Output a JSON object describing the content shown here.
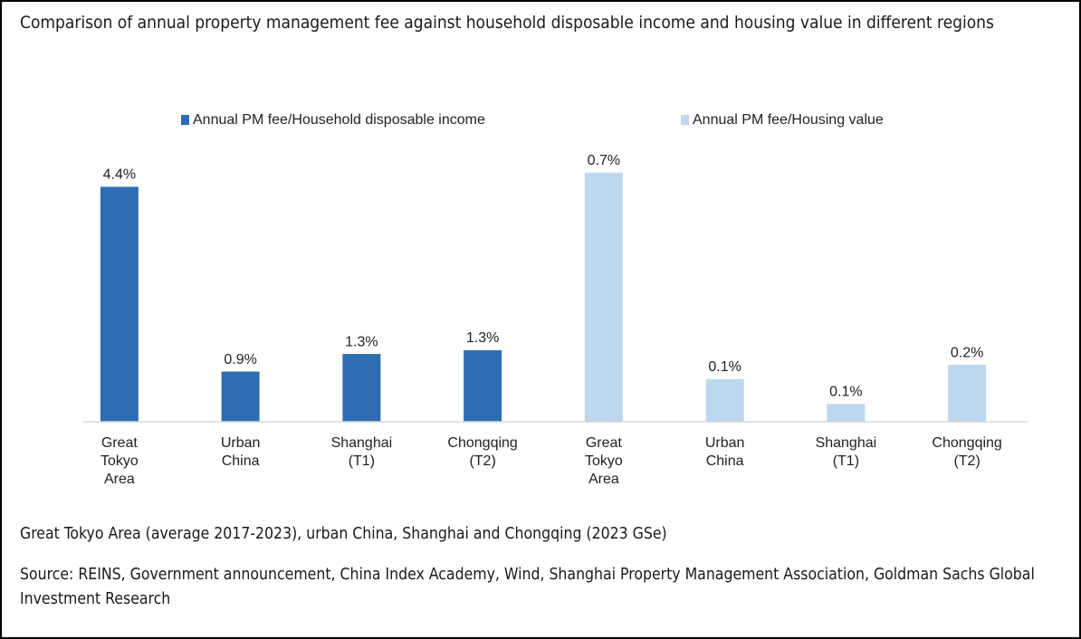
{
  "chart_data": {
    "type": "bar",
    "title": "Comparison of annual property management fee against household disposable income and housing value in different regions",
    "categories": [
      "Great\nTokyo\nArea",
      "Urban\nChina",
      "Shanghai\n(T1)",
      "Chongqing\n(T2)",
      "Great\nTokyo\nArea",
      "Urban\nChina",
      "Shanghai\n(T1)",
      "Chongqing\n(T2)"
    ],
    "series": [
      {
        "name": "Annual PM fee/Household disposable income",
        "color": "#2e6db4",
        "values": [
          4.4,
          0.94,
          1.27,
          1.34,
          null,
          null,
          null,
          null
        ],
        "value_labels": [
          "4.4%",
          "0.9%",
          "1.3%",
          "1.3%",
          null,
          null,
          null,
          null
        ]
      },
      {
        "name": "Annual PM fee/Housing value",
        "color": "#bdd7ee",
        "axis": "y2",
        "values": [
          null,
          null,
          null,
          null,
          0.7,
          0.12,
          0.05,
          0.16
        ],
        "value_labels": [
          null,
          null,
          null,
          null,
          "0.7%",
          "0.1%",
          "0.1%",
          "0.2%"
        ]
      }
    ],
    "ylim": [
      0,
      5
    ],
    "y2lim": [
      0,
      0.75
    ],
    "note": "Great Tokyo Area (average 2017-2023), urban China, Shanghai and Chongqing (2023 GSe)",
    "source": "Source: REINS, Government announcement, China Index Academy, Wind, Shanghai Property Management Association, Goldman Sachs Global Investment Research"
  }
}
